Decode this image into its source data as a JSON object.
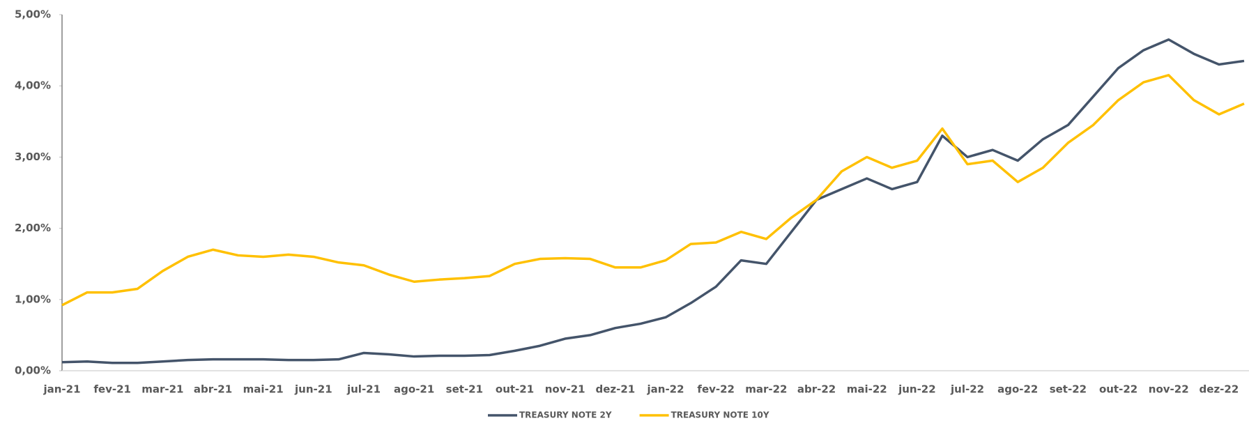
{
  "chart_data": {
    "type": "line",
    "categories": [
      "jan-21",
      null,
      "fev-21",
      null,
      "mar-21",
      null,
      "abr-21",
      null,
      "mai-21",
      null,
      "jun-21",
      null,
      "jul-21",
      null,
      "ago-21",
      null,
      "set-21",
      null,
      "out-21",
      null,
      "nov-21",
      null,
      "dez-21",
      null,
      "jan-22",
      null,
      "fev-22",
      null,
      "mar-22",
      null,
      "abr-22",
      null,
      "mai-22",
      null,
      "jun-22",
      null,
      "jul-22",
      null,
      "ago-22",
      null,
      "set-22",
      null,
      "out-22",
      null,
      "nov-22",
      null,
      "dez-22",
      null
    ],
    "series": [
      {
        "name": "TREASURY NOTE 2Y",
        "color": "#44546a",
        "values": [
          0.12,
          0.13,
          0.11,
          0.11,
          0.13,
          0.15,
          0.16,
          0.16,
          0.16,
          0.15,
          0.15,
          0.16,
          0.25,
          0.23,
          0.2,
          0.21,
          0.21,
          0.22,
          0.28,
          0.35,
          0.45,
          0.5,
          0.6,
          0.66,
          0.75,
          0.95,
          1.18,
          1.55,
          1.5,
          1.95,
          2.4,
          2.55,
          2.7,
          2.55,
          2.65,
          3.3,
          3.0,
          3.1,
          2.95,
          3.25,
          3.45,
          3.85,
          4.25,
          4.5,
          4.65,
          4.45,
          4.3,
          4.35
        ]
      },
      {
        "name": "TREASURY NOTE 10Y",
        "color": "#ffc000",
        "values": [
          0.92,
          1.1,
          1.1,
          1.15,
          1.4,
          1.6,
          1.7,
          1.62,
          1.6,
          1.63,
          1.6,
          1.52,
          1.48,
          1.35,
          1.25,
          1.28,
          1.3,
          1.33,
          1.5,
          1.57,
          1.58,
          1.57,
          1.45,
          1.45,
          1.55,
          1.78,
          1.8,
          1.95,
          1.85,
          2.15,
          2.4,
          2.8,
          3.0,
          2.85,
          2.95,
          3.4,
          2.9,
          2.95,
          2.65,
          2.85,
          3.2,
          3.45,
          3.8,
          4.05,
          4.15,
          3.8,
          3.6,
          3.75
        ]
      }
    ],
    "ylim": [
      0,
      5
    ],
    "yticks": [
      {
        "value": 0,
        "label": "0,00%"
      },
      {
        "value": 1,
        "label": "1,00%"
      },
      {
        "value": 2,
        "label": "2,00%"
      },
      {
        "value": 3,
        "label": "3,00%"
      },
      {
        "value": 4,
        "label": "4,00%"
      },
      {
        "value": 5,
        "label": "5,00%"
      }
    ],
    "legend": "bottom"
  }
}
